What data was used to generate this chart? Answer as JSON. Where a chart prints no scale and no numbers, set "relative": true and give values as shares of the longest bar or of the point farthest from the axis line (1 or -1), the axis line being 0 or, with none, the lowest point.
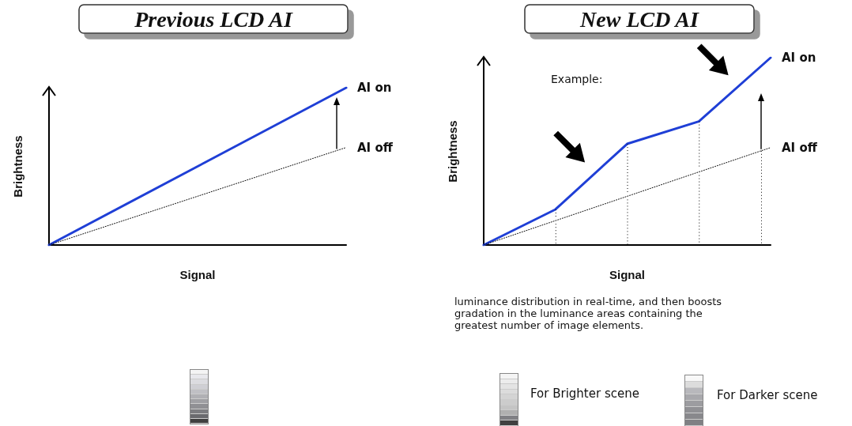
{
  "chart_data": [
    {
      "type": "line",
      "title": "Previous LCD AI",
      "xlabel": "Signal",
      "ylabel": "Brightness",
      "relative": true,
      "categories": [
        null,
        null
      ],
      "marker": "none",
      "grid": false,
      "legend": false,
      "series": [
        {
          "name": "AI on",
          "color": "#1f3fd6",
          "values": [
            0,
            1
          ],
          "line_style": "solid"
        },
        {
          "name": "AI off",
          "color": "#000000",
          "values": [
            0,
            0.62
          ],
          "line_style": "dotted"
        }
      ]
    },
    {
      "type": "line",
      "title": "New LCD AI",
      "xlabel": "Signal",
      "ylabel": "Brightness",
      "relative": true,
      "categories": [
        null,
        null,
        null,
        null,
        null
      ],
      "marker": "none",
      "grid": false,
      "legend": false,
      "series": [
        {
          "name": "AI on",
          "color": "#1f3fd6",
          "values": [
            0,
            0.19,
            0.54,
            0.66,
            1
          ],
          "line_style": "solid"
        },
        {
          "name": "AI off",
          "color": "#000000",
          "values": [
            0,
            0.13,
            0.26,
            0.39,
            0.52
          ],
          "line_style": "dotted"
        }
      ],
      "annotations": [
        "Example:",
        "luminance distribution in real-time, and then boosts\ngradation in the luminance areas containing the\ngreatest number of image elements.",
        "For Brighter scene",
        "For Darker scene"
      ]
    }
  ]
}
